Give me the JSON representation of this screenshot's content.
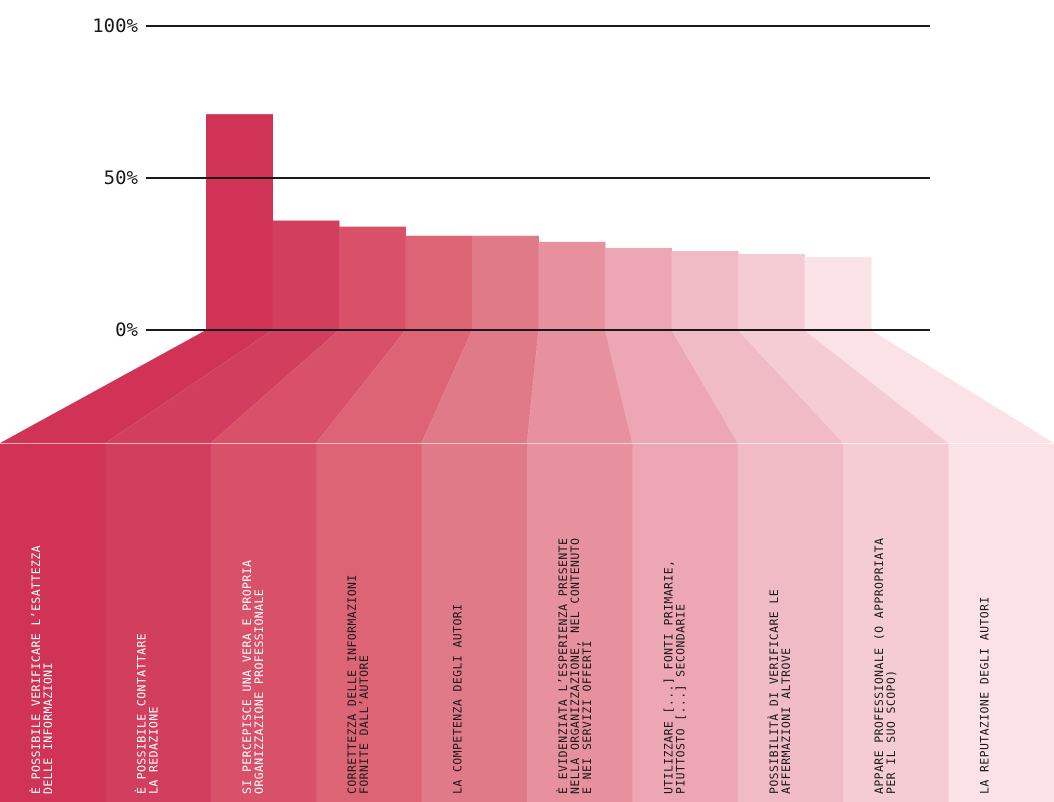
{
  "chart_data": {
    "type": "bar",
    "title": "",
    "xlabel": "",
    "ylabel": "",
    "ylim": [
      0,
      100
    ],
    "y_ticks": [
      {
        "value": 0,
        "label": "0%"
      },
      {
        "value": 50,
        "label": "50%"
      },
      {
        "value": 100,
        "label": "100%"
      }
    ],
    "grid": true,
    "categories": [
      [
        "È POSSIBILE VERIFICARE L’ESATTEZZA",
        "DELLE INFORMAZIONI"
      ],
      [
        "È POSSIBILE CONTATTARE",
        "LA REDAZIONE"
      ],
      [
        "SI PERCEPISCE UNA VERA E PROPRIA",
        "ORGANIZZAZIONE PROFESSIONALE"
      ],
      [
        "CORRETTEZZA DELLE INFORMAZIONI",
        "FORNITE DALL’AUTORE"
      ],
      [
        "LA COMPETENZA DEGLI AUTORI"
      ],
      [
        "È EVIDENZIATA L’ESPERIENZA PRESENTE",
        "NELLA ORGANIZZAZIONE, NEL CONTENUTO",
        "E NEI SERVIZI OFFERTI"
      ],
      [
        "UTILIZZARE [...] FONTI PRIMARIE,",
        "PIUTTOSTO [...] SECONDARIE"
      ],
      [
        "POSSIBILITÀ DI VERIFICARE LE",
        "AFFERMAZIONI ALTROVE"
      ],
      [
        "APPARE PROFESSIONALE (O APPROPRIATA",
        "PER IL SUO SCOPO)"
      ],
      [
        "LA REPUTAZIONE DEGLI AUTORI"
      ]
    ],
    "values": [
      71,
      36,
      34,
      31,
      31,
      29,
      27,
      26,
      25,
      24
    ],
    "colors": [
      "#d03356",
      "#d23e5e",
      "#d85169",
      "#dc6475",
      "#e07a89",
      "#e7909e",
      "#eda6b3",
      "#f1bbc5",
      "#f6ccd4",
      "#fbe2e7"
    ],
    "text_colors": [
      "#ffffff",
      "#ffffff",
      "#ffffff",
      "#1a1a1a",
      "#1a1a1a",
      "#1a1a1a",
      "#1a1a1a",
      "#1a1a1a",
      "#1a1a1a",
      "#1a1a1a"
    ]
  }
}
